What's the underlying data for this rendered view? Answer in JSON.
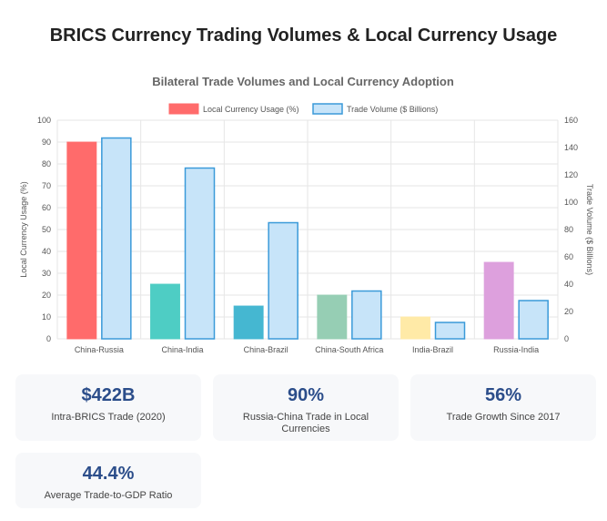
{
  "page_title": "BRICS Currency Trading Volumes & Local Currency Usage",
  "chart_data": {
    "type": "bar",
    "title": "Bilateral Trade Volumes and Local Currency Adoption",
    "categories": [
      "China-Russia",
      "China-India",
      "China-Brazil",
      "China-South Africa",
      "India-Brazil",
      "Russia-India"
    ],
    "series": [
      {
        "name": "Local Currency Usage (%)",
        "axis": "left",
        "values": [
          90,
          25,
          15,
          20,
          10,
          35
        ],
        "colors": [
          "#ff6b6b",
          "#4ecdc4",
          "#45b7d1",
          "#96ceb4",
          "#ffeaa7",
          "#dda0dd"
        ],
        "legend_color": "#ff6b6b"
      },
      {
        "name": "Trade Volume ($ Billions)",
        "axis": "right",
        "values": [
          147,
          125,
          85,
          35,
          12,
          28
        ],
        "color": "#c7e4f9",
        "border": "#3a9ad9"
      }
    ],
    "ylabel_left": "Local Currency Usage (%)",
    "ylabel_right": "Trade Volume ($ Billions)",
    "ylim_left": [
      0,
      100
    ],
    "ylim_right": [
      0,
      160
    ],
    "yticks_left": [
      0,
      10,
      20,
      30,
      40,
      50,
      60,
      70,
      80,
      90,
      100
    ],
    "yticks_right": [
      0,
      20,
      40,
      60,
      80,
      100,
      120,
      140,
      160
    ],
    "legend": "top",
    "grid": true
  },
  "stats": [
    {
      "value": "$422B",
      "label": "Intra-BRICS Trade (2020)"
    },
    {
      "value": "90%",
      "label": "Russia-China Trade in Local Currencies"
    },
    {
      "value": "56%",
      "label": "Trade Growth Since 2017"
    },
    {
      "value": "44.4%",
      "label": "Average Trade-to-GDP Ratio"
    }
  ]
}
